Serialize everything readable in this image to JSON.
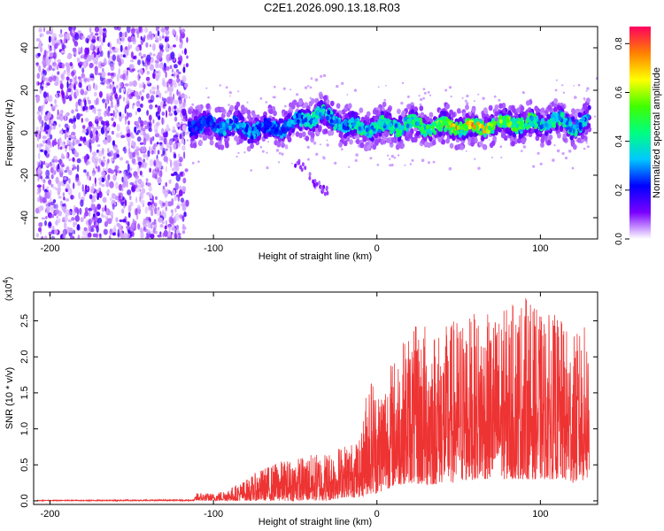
{
  "chart_data": [
    {
      "type": "heatmap",
      "title": "C2E1.2026.090.13.18.R03",
      "xlabel": "Height of straight line (km)",
      "ylabel": "Frequency (Hz)",
      "xlim": [
        -210,
        135
      ],
      "ylim": [
        -50,
        50
      ],
      "xticks": [
        -200,
        -100,
        0,
        100
      ],
      "yticks": [
        -40,
        -20,
        0,
        20,
        40
      ],
      "colorbar": {
        "label": "Normalized spectral amplitude",
        "ticks": [
          "0.0",
          "0.2",
          "0.4",
          "0.6",
          "0.8"
        ],
        "range": [
          0,
          0.87
        ],
        "colors": [
          "#ffffff",
          "#7a00ff",
          "#0000ff",
          "#00c8ff",
          "#00ff80",
          "#40ff00",
          "#ffff00",
          "#ff8000",
          "#ff0060"
        ]
      },
      "noise_region_x": [
        -208,
        -116
      ],
      "signal_ridge": {
        "x": [
          -115,
          -100,
          -90,
          -80,
          -70,
          -60,
          -50,
          -40,
          -35,
          -30,
          -20,
          -10,
          0,
          10,
          20,
          30,
          40,
          50,
          60,
          70,
          80,
          90,
          100,
          110,
          120,
          130
        ],
        "freq": [
          4,
          3,
          4,
          2,
          2,
          2,
          5,
          7,
          9,
          7,
          4,
          2,
          3,
          3,
          4,
          3,
          3,
          3,
          2,
          4,
          5,
          4,
          4,
          6,
          3,
          6
        ],
        "peak_amplitude": [
          0.25,
          0.3,
          0.35,
          0.35,
          0.3,
          0.3,
          0.35,
          0.4,
          0.45,
          0.4,
          0.4,
          0.45,
          0.45,
          0.45,
          0.5,
          0.55,
          0.75,
          0.8,
          0.8,
          0.75,
          0.7,
          0.55,
          0.45,
          0.45,
          0.4,
          0.4
        ]
      },
      "secondary_trace": {
        "x": [
          -50,
          -45,
          -42,
          -38,
          -34,
          -30
        ],
        "freq": [
          -14,
          -16,
          -20,
          -24,
          -26,
          -28
        ]
      }
    },
    {
      "type": "line",
      "xlabel": "Height of straight line (km)",
      "ylabel": "SNR (10 * v/v)",
      "scale_note": "(x10",
      "scale_exp": "4",
      "scale_close": ")",
      "xlim": [
        -210,
        135
      ],
      "ylim": [
        -0.05,
        2.9
      ],
      "xticks": [
        -200,
        -100,
        0,
        100
      ],
      "yticks": [
        "0.0",
        "0.5",
        "1.0",
        "1.5",
        "2.0",
        "2.5"
      ],
      "color": "#ee3333",
      "envelope": {
        "x": [
          -208,
          -112,
          -110,
          -100,
          -90,
          -80,
          -70,
          -60,
          -50,
          -40,
          -30,
          -20,
          -10,
          -5,
          0,
          10,
          20,
          30,
          40,
          50,
          60,
          70,
          80,
          90,
          100,
          110,
          120,
          130
        ],
        "max": [
          0.01,
          0.02,
          0.12,
          0.1,
          0.18,
          0.3,
          0.45,
          0.55,
          0.6,
          0.65,
          0.7,
          0.8,
          0.85,
          1.9,
          1.6,
          2.0,
          2.4,
          2.5,
          2.4,
          2.6,
          2.6,
          2.6,
          2.7,
          2.9,
          2.6,
          2.6,
          2.3,
          2.5
        ],
        "min": [
          0.0,
          0.0,
          0.0,
          0.0,
          0.0,
          0.0,
          0.0,
          0.0,
          0.0,
          0.0,
          0.0,
          0.05,
          0.05,
          0.1,
          0.1,
          0.2,
          0.25,
          0.2,
          0.25,
          0.25,
          0.3,
          0.3,
          0.3,
          0.3,
          0.3,
          0.3,
          0.25,
          0.3
        ]
      }
    }
  ]
}
